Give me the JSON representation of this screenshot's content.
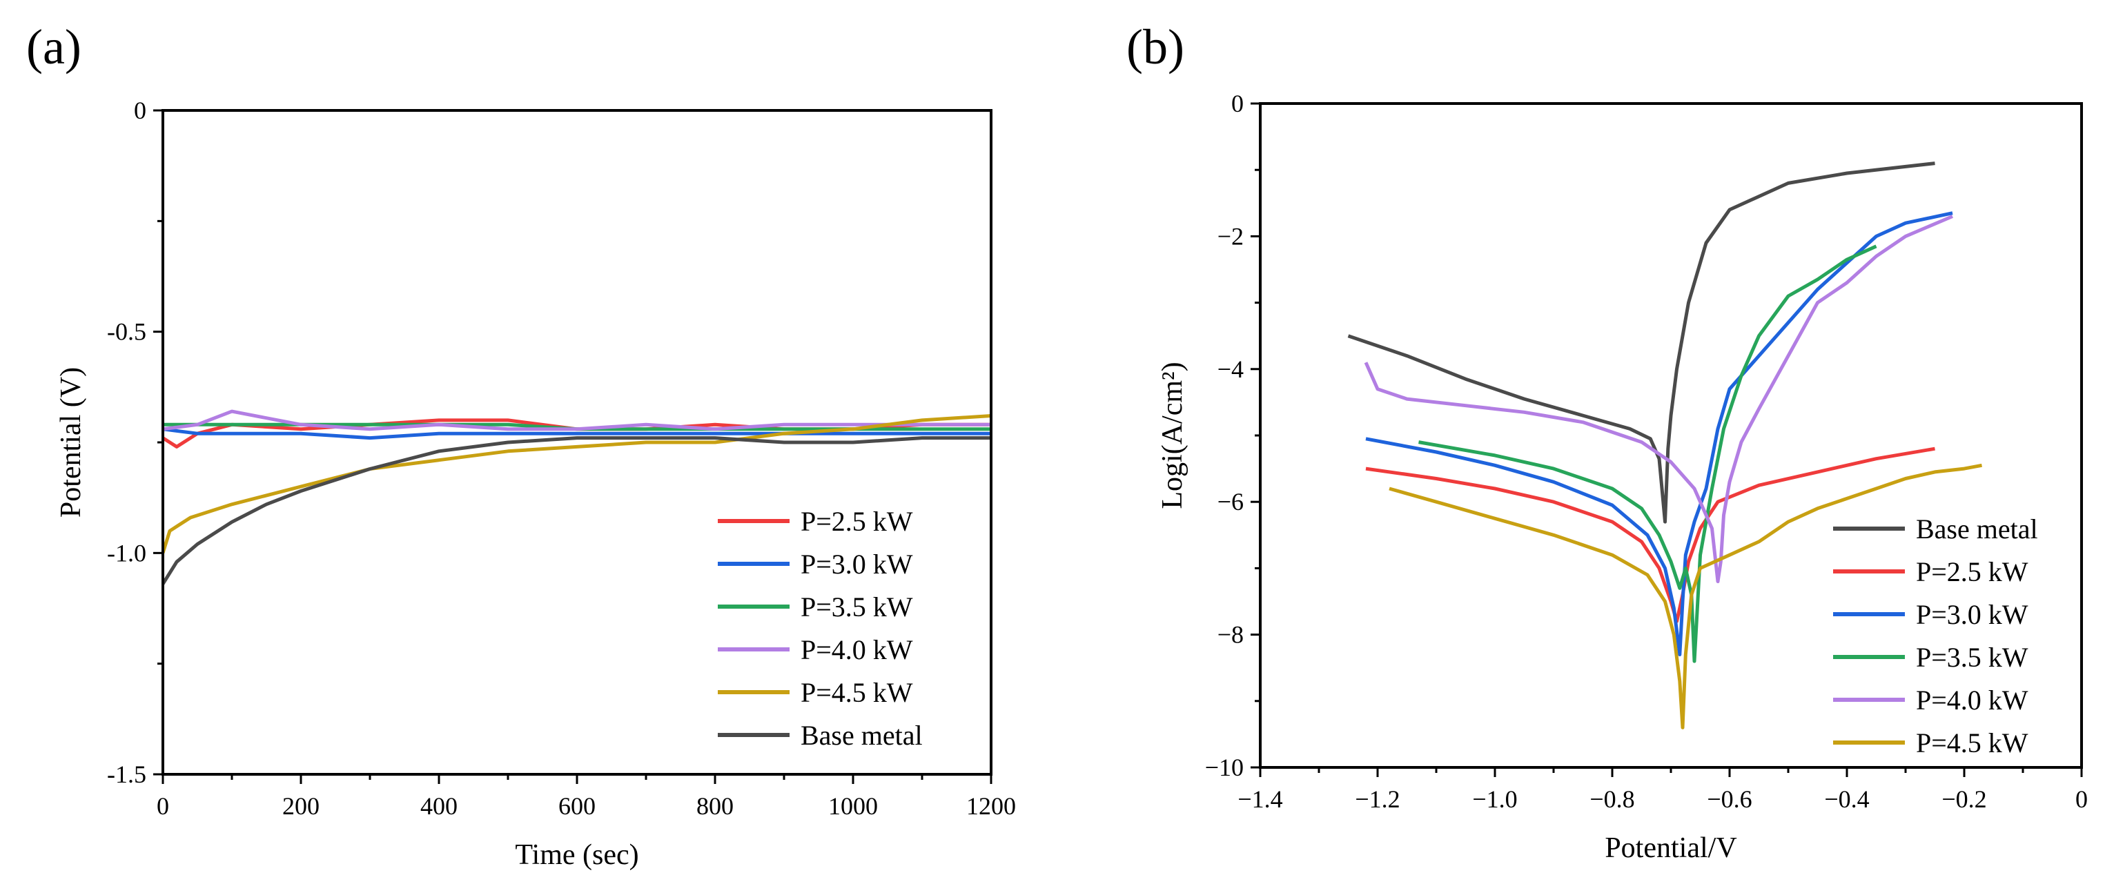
{
  "chart_data": [
    {
      "type": "line",
      "panel_label": "(a)",
      "title": "",
      "xlabel": "Time (sec)",
      "ylabel": "Potential (V)",
      "xlim": [
        0,
        1200
      ],
      "ylim": [
        -1.5,
        0
      ],
      "x_ticks": [
        0,
        200,
        400,
        600,
        800,
        1000,
        1200
      ],
      "y_ticks": [
        0,
        -0.5,
        -1.0,
        -1.5
      ],
      "x_tick_labels": [
        "0",
        "200",
        "400",
        "600",
        "800",
        "1000",
        "1200"
      ],
      "y_tick_labels": [
        "0",
        "-0.5",
        "-1.0",
        "-1.5"
      ],
      "grid": false,
      "legend_position": "bottom-right",
      "series": [
        {
          "name": "P=2.5 kW",
          "color": "#ef3b3b",
          "x": [
            0,
            20,
            50,
            100,
            200,
            300,
            400,
            500,
            600,
            700,
            800,
            900,
            1000,
            1100,
            1200
          ],
          "y": [
            -0.74,
            -0.76,
            -0.73,
            -0.71,
            -0.72,
            -0.71,
            -0.7,
            -0.7,
            -0.72,
            -0.72,
            -0.71,
            -0.72,
            -0.72,
            -0.71,
            -0.71
          ]
        },
        {
          "name": "P=3.0 kW",
          "color": "#1e63dc",
          "x": [
            0,
            50,
            100,
            200,
            300,
            400,
            500,
            600,
            700,
            800,
            900,
            1000,
            1100,
            1200
          ],
          "y": [
            -0.72,
            -0.73,
            -0.73,
            -0.73,
            -0.74,
            -0.73,
            -0.73,
            -0.73,
            -0.73,
            -0.73,
            -0.73,
            -0.73,
            -0.73,
            -0.73
          ]
        },
        {
          "name": "P=3.5 kW",
          "color": "#27a55a",
          "x": [
            0,
            50,
            100,
            200,
            300,
            400,
            500,
            600,
            700,
            800,
            900,
            1000,
            1100,
            1200
          ],
          "y": [
            -0.71,
            -0.71,
            -0.71,
            -0.71,
            -0.71,
            -0.71,
            -0.71,
            -0.72,
            -0.72,
            -0.72,
            -0.72,
            -0.72,
            -0.72,
            -0.72
          ]
        },
        {
          "name": "P=4.0 kW",
          "color": "#b27ee3",
          "x": [
            0,
            50,
            100,
            200,
            300,
            400,
            500,
            600,
            700,
            800,
            900,
            1000,
            1100,
            1200
          ],
          "y": [
            -0.72,
            -0.71,
            -0.68,
            -0.71,
            -0.72,
            -0.71,
            -0.72,
            -0.72,
            -0.71,
            -0.72,
            -0.71,
            -0.71,
            -0.71,
            -0.71
          ]
        },
        {
          "name": "P=4.5 kW",
          "color": "#c8a012",
          "x": [
            0,
            10,
            40,
            100,
            200,
            300,
            400,
            500,
            600,
            700,
            800,
            900,
            1000,
            1100,
            1200
          ],
          "y": [
            -1.0,
            -0.95,
            -0.92,
            -0.89,
            -0.85,
            -0.81,
            -0.79,
            -0.77,
            -0.76,
            -0.75,
            -0.75,
            -0.73,
            -0.72,
            -0.7,
            -0.69
          ]
        },
        {
          "name": "Base metal",
          "color": "#4a4a4a",
          "x": [
            0,
            20,
            50,
            100,
            150,
            200,
            300,
            400,
            500,
            600,
            700,
            800,
            900,
            1000,
            1100,
            1200
          ],
          "y": [
            -1.07,
            -1.02,
            -0.98,
            -0.93,
            -0.89,
            -0.86,
            -0.81,
            -0.77,
            -0.75,
            -0.74,
            -0.74,
            -0.74,
            -0.75,
            -0.75,
            -0.74,
            -0.74
          ]
        }
      ]
    },
    {
      "type": "line",
      "panel_label": "(b)",
      "title": "",
      "xlabel": "Potential/V",
      "ylabel": "Logi(A/cm²)",
      "xlim": [
        -1.4,
        0
      ],
      "ylim": [
        -10,
        0
      ],
      "x_ticks": [
        -1.4,
        -1.2,
        -1.0,
        -0.8,
        -0.6,
        -0.4,
        -0.2,
        0
      ],
      "y_ticks": [
        0,
        -2,
        -4,
        -6,
        -8,
        -10
      ],
      "x_tick_labels": [
        "−1.4",
        "−1.2",
        "−1.0",
        "−0.8",
        "−0.6",
        "−0.4",
        "−0.2",
        "0"
      ],
      "y_tick_labels": [
        "0",
        "−2",
        "−4",
        "−6",
        "−8",
        "−10"
      ],
      "grid": false,
      "legend_position": "bottom-right",
      "series": [
        {
          "name": "Base metal",
          "color": "#4a4a4a",
          "x": [
            -1.25,
            -1.15,
            -1.05,
            -0.95,
            -0.85,
            -0.77,
            -0.735,
            -0.72,
            -0.71,
            -0.705,
            -0.7,
            -0.69,
            -0.67,
            -0.64,
            -0.6,
            -0.5,
            -0.4,
            -0.3,
            -0.25
          ],
          "y": [
            -3.5,
            -3.8,
            -4.15,
            -4.45,
            -4.7,
            -4.9,
            -5.05,
            -5.35,
            -6.3,
            -5.2,
            -4.7,
            -4.0,
            -3.0,
            -2.1,
            -1.6,
            -1.2,
            -1.05,
            -0.95,
            -0.9
          ]
        },
        {
          "name": "P=2.5 kW",
          "color": "#ef3b3b",
          "x": [
            -1.22,
            -1.1,
            -1.0,
            -0.9,
            -0.8,
            -0.75,
            -0.72,
            -0.7,
            -0.69,
            -0.68,
            -0.67,
            -0.65,
            -0.62,
            -0.55,
            -0.45,
            -0.35,
            -0.25
          ],
          "y": [
            -5.5,
            -5.65,
            -5.8,
            -6.0,
            -6.3,
            -6.6,
            -7.0,
            -7.5,
            -7.8,
            -7.4,
            -6.9,
            -6.4,
            -6.0,
            -5.75,
            -5.55,
            -5.35,
            -5.2
          ]
        },
        {
          "name": "P=3.0 kW",
          "color": "#1e63dc",
          "x": [
            -1.22,
            -1.1,
            -1.0,
            -0.9,
            -0.8,
            -0.74,
            -0.71,
            -0.695,
            -0.685,
            -0.68,
            -0.675,
            -0.66,
            -0.64,
            -0.62,
            -0.6,
            -0.55,
            -0.5,
            -0.45,
            -0.4,
            -0.35,
            -0.3,
            -0.22
          ],
          "y": [
            -5.05,
            -5.25,
            -5.45,
            -5.7,
            -6.05,
            -6.5,
            -7.0,
            -7.6,
            -8.3,
            -7.5,
            -6.8,
            -6.3,
            -5.8,
            -4.9,
            -4.3,
            -3.8,
            -3.3,
            -2.8,
            -2.4,
            -2.0,
            -1.8,
            -1.65
          ]
        },
        {
          "name": "P=3.5 kW",
          "color": "#27a55a",
          "x": [
            -1.13,
            -1.0,
            -0.9,
            -0.8,
            -0.75,
            -0.72,
            -0.7,
            -0.685,
            -0.675,
            -0.665,
            -0.66,
            -0.655,
            -0.65,
            -0.63,
            -0.61,
            -0.58,
            -0.55,
            -0.5,
            -0.45,
            -0.4,
            -0.35
          ],
          "y": [
            -5.1,
            -5.3,
            -5.5,
            -5.8,
            -6.1,
            -6.5,
            -6.9,
            -7.3,
            -7.0,
            -7.4,
            -8.4,
            -7.6,
            -6.8,
            -5.8,
            -4.9,
            -4.1,
            -3.5,
            -2.9,
            -2.65,
            -2.35,
            -2.15
          ]
        },
        {
          "name": "P=4.0 kW",
          "color": "#b27ee3",
          "x": [
            -1.22,
            -1.2,
            -1.15,
            -1.05,
            -0.95,
            -0.85,
            -0.75,
            -0.7,
            -0.66,
            -0.63,
            -0.62,
            -0.615,
            -0.61,
            -0.6,
            -0.58,
            -0.55,
            -0.5,
            -0.45,
            -0.4,
            -0.35,
            -0.3,
            -0.22
          ],
          "y": [
            -3.9,
            -4.3,
            -4.45,
            -4.55,
            -4.65,
            -4.8,
            -5.1,
            -5.4,
            -5.8,
            -6.4,
            -7.2,
            -6.9,
            -6.2,
            -5.7,
            -5.1,
            -4.6,
            -3.8,
            -3.0,
            -2.7,
            -2.3,
            -2.0,
            -1.7
          ]
        },
        {
          "name": "P=4.5 kW",
          "color": "#c8a012",
          "x": [
            -1.18,
            -1.1,
            -1.0,
            -0.9,
            -0.8,
            -0.74,
            -0.71,
            -0.695,
            -0.685,
            -0.68,
            -0.675,
            -0.665,
            -0.65,
            -0.6,
            -0.55,
            -0.5,
            -0.45,
            -0.4,
            -0.35,
            -0.3,
            -0.25,
            -0.2,
            -0.17
          ],
          "y": [
            -5.8,
            -6.0,
            -6.25,
            -6.5,
            -6.8,
            -7.1,
            -7.5,
            -8.0,
            -8.7,
            -9.4,
            -8.3,
            -7.4,
            -7.0,
            -6.8,
            -6.6,
            -6.3,
            -6.1,
            -5.95,
            -5.8,
            -5.65,
            -5.55,
            -5.5,
            -5.45
          ]
        }
      ]
    }
  ]
}
